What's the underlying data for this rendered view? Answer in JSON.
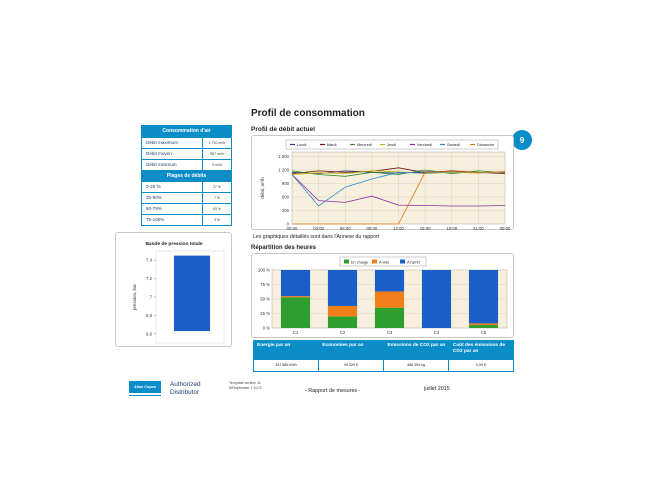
{
  "page": {
    "title": "Profil de consommation",
    "badge": "9"
  },
  "summary": {
    "air_header": "Consommation d'air",
    "rows": [
      {
        "label": "Débit maximum",
        "value": "1 710 m³/h"
      },
      {
        "label": "Débit moyen",
        "value": "987 m³/h"
      },
      {
        "label": "Débit minimum",
        "value": "0 m³/h"
      }
    ],
    "ranges_header": "Plages de débits",
    "ranges": [
      {
        "label": "0-25 %",
        "value": "27 %"
      },
      {
        "label": "25-50%",
        "value": "7 %"
      },
      {
        "label": "50-75%",
        "value": "63 %"
      },
      {
        "label": "75-100%",
        "value": "3 %"
      }
    ]
  },
  "profile": {
    "subtitle": "Profil de débit actuel",
    "note": "Les graphiques détaillés sont dans l'Annexe du rapport"
  },
  "hours": {
    "title": "Répartition des heures"
  },
  "costs": {
    "headers": [
      "Energie par an",
      "Economies par an",
      "Emissions de CO2 par an",
      "Coût des émissions de CO2 par an"
    ],
    "values": [
      "347 885 kWh",
      "99 329 €",
      "486 354 kg",
      "0,00 €"
    ]
  },
  "footer": {
    "logo_text": "Atlas Copco",
    "authorized": "Authorized",
    "distributor": "Distributor",
    "template_version": "Template version 11",
    "airoptimizer": "AIRoptimizer 1.5.0.5",
    "report": "- Rapport de mesures -",
    "date": "juillet 2015"
  },
  "chart_data": [
    {
      "type": "line",
      "title": "",
      "ylabel": "débit, m³/h",
      "xlabel": "",
      "ylim": [
        0,
        1600
      ],
      "yticks": [
        "0",
        "300",
        "600",
        "900",
        "1 200",
        "1 500"
      ],
      "x": [
        "00:00",
        "03:00",
        "06:00",
        "09:00",
        "12:00",
        "15:00",
        "18:00",
        "21:00",
        "00:00"
      ],
      "legend": [
        "Lundi",
        "Mardi",
        "Mercredi",
        "Jeudi",
        "Vendredi",
        "Samedi",
        "Dimanche"
      ],
      "grid": true,
      "series": [
        {
          "name": "Lundi",
          "color": "#1f3f9a",
          "values": [
            1150,
            1120,
            1180,
            1150,
            1130,
            1160,
            1170,
            1140,
            1160
          ]
        },
        {
          "name": "Mardi",
          "color": "#7a1010",
          "values": [
            1120,
            1180,
            1150,
            1170,
            1250,
            1140,
            1180,
            1150,
            1120
          ]
        },
        {
          "name": "Mercredi",
          "color": "#2e8b2e",
          "values": [
            1180,
            1100,
            1060,
            1150,
            1100,
            1200,
            1120,
            1180,
            1140
          ]
        },
        {
          "name": "Jeudi",
          "color": "#c8b800",
          "values": [
            1100,
            1140,
            1120,
            1180,
            1160,
            1120,
            1150,
            1130,
            1170
          ]
        },
        {
          "name": "Vendredi",
          "color": "#8a2aa0",
          "values": [
            1100,
            520,
            480,
            620,
            420,
            410,
            400,
            400,
            410
          ]
        },
        {
          "name": "Samedi",
          "color": "#2a8ad0",
          "values": [
            1100,
            400,
            820,
            1000,
            1150,
            1130,
            1160,
            1140,
            1150
          ]
        },
        {
          "name": "Dimanche",
          "color": "#e07a10",
          "values": [
            0,
            0,
            0,
            0,
            0,
            1150,
            1170,
            1140,
            1160
          ]
        }
      ]
    },
    {
      "type": "bar",
      "title": "",
      "categories": [
        "C1",
        "C2",
        "C3",
        "C4",
        "C5"
      ],
      "ylim": [
        0,
        100
      ],
      "yticks": [
        "0 %",
        "25 %",
        "50 %",
        "75 %",
        "100 %"
      ],
      "stacked": true,
      "legend_position": "top",
      "series": [
        {
          "name": "En charge",
          "color": "#2e9e2e",
          "values": [
            53,
            20,
            35,
            0,
            5
          ]
        },
        {
          "name": "A vide",
          "color": "#f07f1a",
          "values": [
            2,
            18,
            28,
            0,
            3
          ]
        },
        {
          "name": "A l'arrêt",
          "color": "#1a5fc8",
          "values": [
            45,
            62,
            37,
            100,
            92
          ]
        }
      ]
    },
    {
      "type": "bar",
      "title": "Bande de pression totale",
      "ylabel": "pression, bar",
      "ylim": [
        6.5,
        7.5
      ],
      "yticks": [
        "6,6",
        "6,8",
        "7",
        "7,2",
        "7,4"
      ],
      "categories": [
        ""
      ],
      "range": [
        6.63,
        7.45
      ],
      "color": "#1a5fc8"
    }
  ]
}
